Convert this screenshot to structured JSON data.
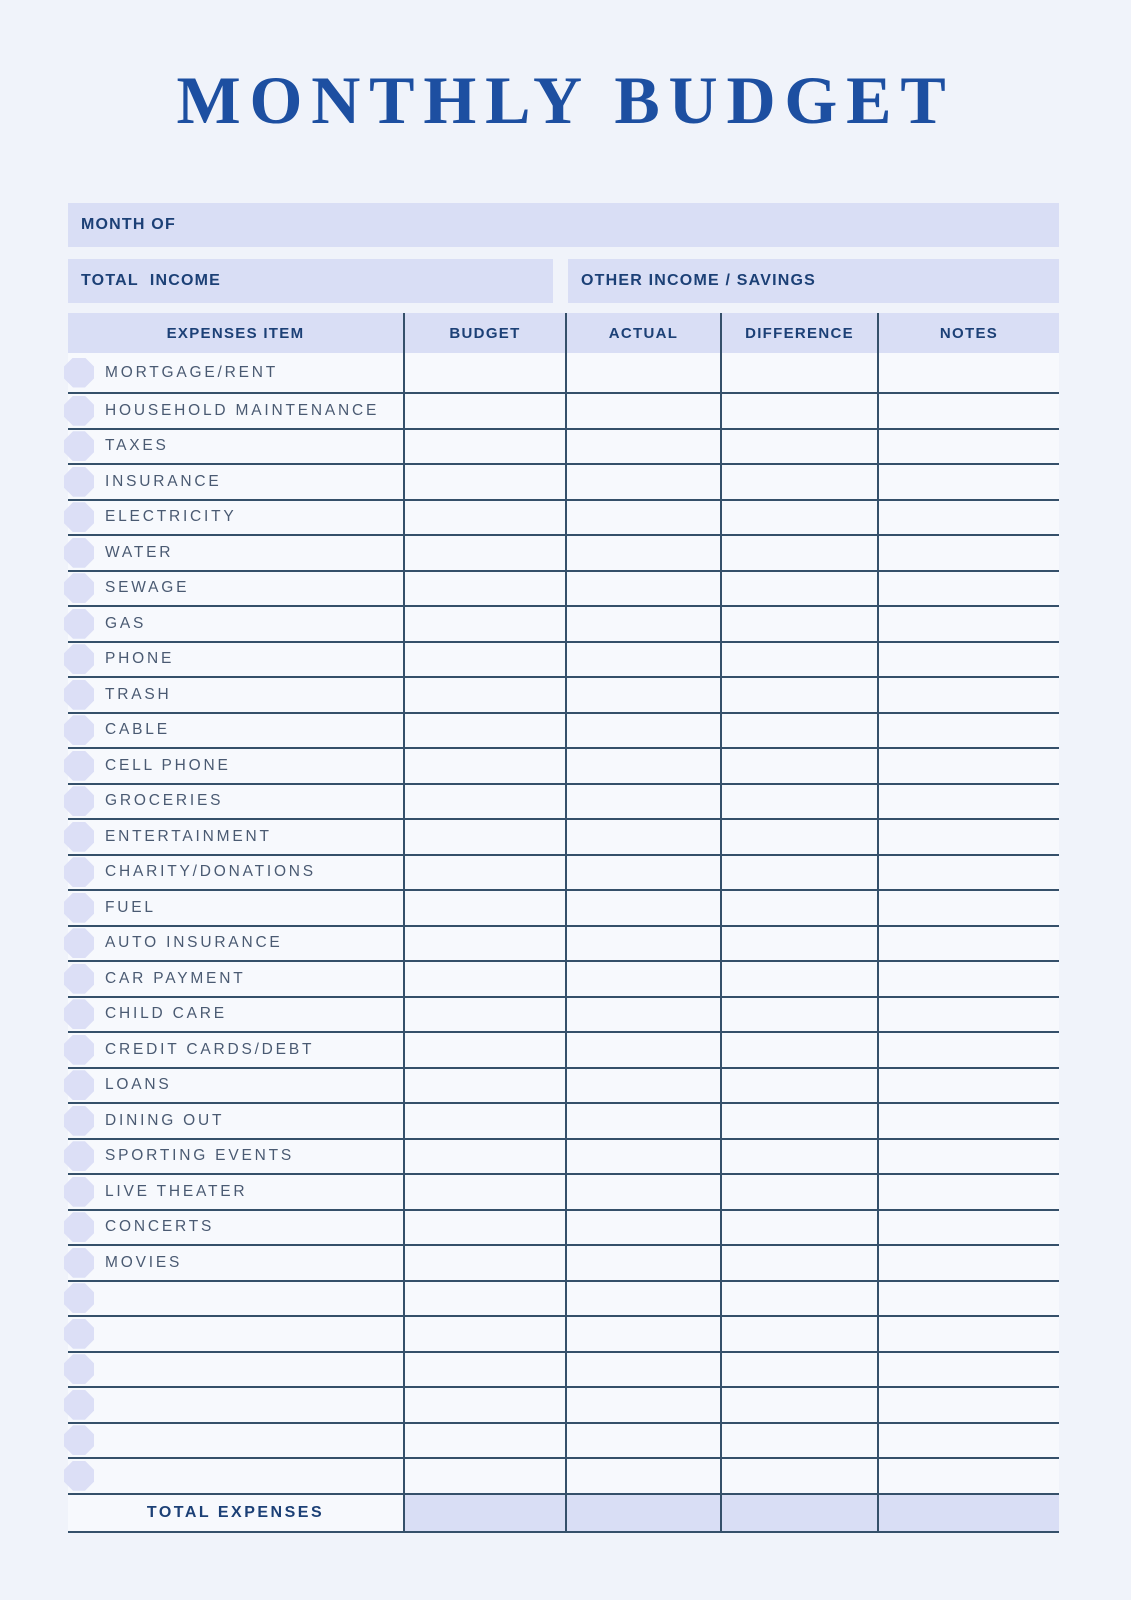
{
  "title": "MONTHLY BUDGET",
  "fields": {
    "month_of_label": "MONTH OF",
    "total_income_label": "TOTAL  INCOME",
    "other_income_label": "OTHER INCOME / SAVINGS"
  },
  "table": {
    "headers": [
      "EXPENSES ITEM",
      "BUDGET",
      "ACTUAL",
      "DIFFERENCE",
      "NOTES"
    ],
    "value_columns": [
      "budget",
      "actual",
      "difference",
      "notes"
    ],
    "expense_items": [
      "MORTGAGE/RENT",
      "HOUSEHOLD MAINTENANCE",
      "TAXES",
      "INSURANCE",
      "ELECTRICITY",
      "WATER",
      "SEWAGE",
      "GAS",
      "PHONE",
      "TRASH",
      "CABLE",
      "CELL PHONE",
      "GROCERIES",
      "ENTERTAINMENT",
      "CHARITY/DONATIONS",
      "FUEL",
      "AUTO INSURANCE",
      "CAR PAYMENT",
      "CHILD CARE",
      "CREDIT CARDS/DEBT",
      "LOANS",
      "DINING OUT",
      "SPORTING EVENTS",
      "LIVE THEATER",
      "CONCERTS",
      "MOVIES"
    ],
    "empty_row_count": 6,
    "total_row": {
      "label": "TOTAL EXPENSES"
    }
  },
  "colors": {
    "page_background": "#f0f3fa",
    "row_background": "#f7f9fd",
    "band_background": "#d9def5",
    "bullet": "#dcdff6",
    "title_blue": "#1d4fa1",
    "heading_navy": "#1c4076",
    "item_text": "#4a5a72",
    "grid_line": "#35506a"
  }
}
